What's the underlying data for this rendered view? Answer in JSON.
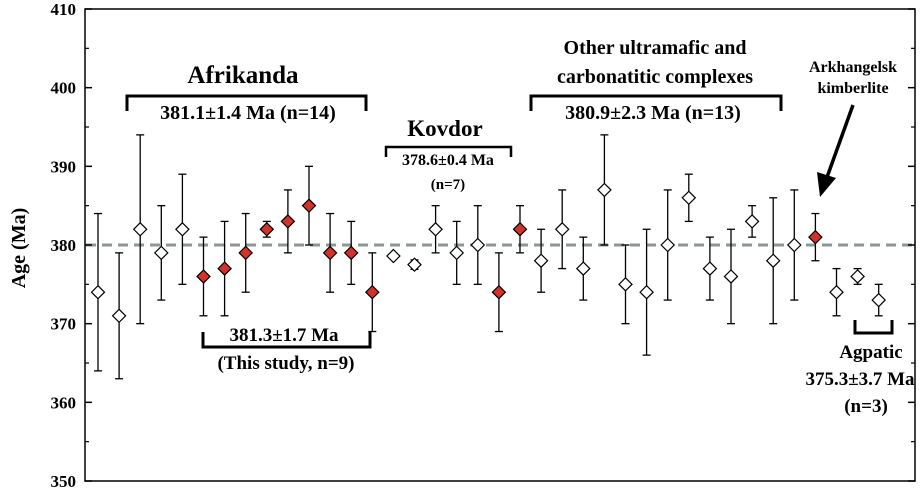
{
  "chart_data": {
    "type": "scatter",
    "ylabel": "Age (Ma)",
    "ylim": [
      350,
      410
    ],
    "yticks": [
      "350",
      "360",
      "370",
      "380",
      "390",
      "400",
      "410"
    ],
    "xlabel": "",
    "reference_line": 380,
    "colors": {
      "this_study": "#d2322a",
      "other": "#ffffff",
      "refline": "#8c9696"
    },
    "points": [
      {
        "y": 374,
        "lo": 364,
        "hi": 384,
        "filled": false
      },
      {
        "y": 371,
        "lo": 363,
        "hi": 379,
        "filled": false
      },
      {
        "y": 382,
        "lo": 370,
        "hi": 394,
        "filled": false
      },
      {
        "y": 379,
        "lo": 373,
        "hi": 385,
        "filled": false
      },
      {
        "y": 382,
        "lo": 375,
        "hi": 389,
        "filled": false
      },
      {
        "y": 376,
        "lo": 371,
        "hi": 381,
        "filled": true
      },
      {
        "y": 377,
        "lo": 371,
        "hi": 383,
        "filled": true
      },
      {
        "y": 379,
        "lo": 374,
        "hi": 384,
        "filled": true
      },
      {
        "y": 382,
        "lo": 381,
        "hi": 383,
        "filled": true
      },
      {
        "y": 383,
        "lo": 379,
        "hi": 387,
        "filled": true
      },
      {
        "y": 385,
        "lo": 380,
        "hi": 390,
        "filled": true
      },
      {
        "y": 379,
        "lo": 374,
        "hi": 384,
        "filled": true
      },
      {
        "y": 379,
        "lo": 375,
        "hi": 383,
        "filled": true
      },
      {
        "y": 374,
        "lo": 369,
        "hi": 379,
        "filled": true
      },
      {
        "y": 378.6,
        "lo": 378.6,
        "hi": 378.6,
        "filled": false
      },
      {
        "y": 377.5,
        "lo": 376.9,
        "hi": 378.1,
        "filled": false
      },
      {
        "y": 382,
        "lo": 379,
        "hi": 385,
        "filled": false
      },
      {
        "y": 379,
        "lo": 375,
        "hi": 383,
        "filled": false
      },
      {
        "y": 380,
        "lo": 375,
        "hi": 385,
        "filled": false
      },
      {
        "y": 374,
        "lo": 369,
        "hi": 379,
        "filled": true
      },
      {
        "y": 382,
        "lo": 379,
        "hi": 385,
        "filled": true
      },
      {
        "y": 378,
        "lo": 374,
        "hi": 382,
        "filled": false
      },
      {
        "y": 382,
        "lo": 377,
        "hi": 387,
        "filled": false
      },
      {
        "y": 377,
        "lo": 373,
        "hi": 381,
        "filled": false
      },
      {
        "y": 387,
        "lo": 380,
        "hi": 394,
        "filled": false
      },
      {
        "y": 375,
        "lo": 370,
        "hi": 380,
        "filled": false
      },
      {
        "y": 374,
        "lo": 366,
        "hi": 382,
        "filled": false
      },
      {
        "y": 380,
        "lo": 373,
        "hi": 387,
        "filled": false
      },
      {
        "y": 386,
        "lo": 383,
        "hi": 389,
        "filled": false
      },
      {
        "y": 377,
        "lo": 373,
        "hi": 381,
        "filled": false
      },
      {
        "y": 376,
        "lo": 370,
        "hi": 382,
        "filled": false
      },
      {
        "y": 383,
        "lo": 381,
        "hi": 385,
        "filled": false
      },
      {
        "y": 378,
        "lo": 370,
        "hi": 386,
        "filled": false
      },
      {
        "y": 380,
        "lo": 373,
        "hi": 387,
        "filled": false
      },
      {
        "y": 381,
        "lo": 378,
        "hi": 384,
        "filled": true
      },
      {
        "y": 374,
        "lo": 371,
        "hi": 377,
        "filled": false
      },
      {
        "y": 376,
        "lo": 375,
        "hi": 377,
        "filled": false
      },
      {
        "y": 373,
        "lo": 371,
        "hi": 375,
        "filled": false
      }
    ],
    "groups": [
      {
        "key": "afrikanda",
        "name": "Afrikanda",
        "summary": "381.1±1.4 Ma (n=14)"
      },
      {
        "key": "this_study",
        "summary": "381.3±1.7 Ma",
        "note": "(This study, n=9)"
      },
      {
        "key": "kovdor",
        "name": "Kovdor",
        "summary": "378.6±0.4 Ma",
        "note": "(n=7)"
      },
      {
        "key": "other",
        "name_line1": "Other ultramafic and",
        "name_line2": "carbonatitic complexes",
        "summary": "380.9±2.3 Ma (n=13)"
      },
      {
        "key": "arkhangelsk",
        "name_line1": "Arkhangelsk",
        "name_line2": "kimberlite"
      },
      {
        "key": "agpatic",
        "name": "Agpatic",
        "summary": "375.3±3.7 Ma",
        "note": "(n=3)"
      }
    ]
  }
}
